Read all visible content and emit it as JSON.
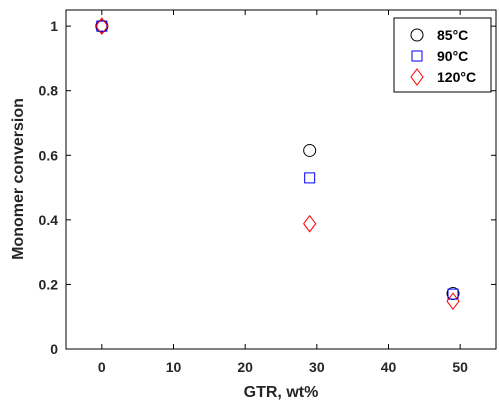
{
  "chart_data": {
    "type": "scatter",
    "title": "",
    "xlabel": "GTR, wt%",
    "ylabel": "Monomer conversion",
    "xlim": [
      -5,
      55
    ],
    "ylim": [
      0,
      1.05
    ],
    "x_ticks": [
      0,
      10,
      20,
      30,
      40,
      50
    ],
    "y_ticks": [
      0,
      0.2,
      0.4,
      0.6,
      0.8,
      1
    ],
    "x_tick_labels": [
      "0",
      "10",
      "20",
      "30",
      "40",
      "50"
    ],
    "y_tick_labels": [
      "0",
      "0.2",
      "0.4",
      "0.6",
      "0.8",
      "1"
    ],
    "grid": false,
    "legend_position": "top-right",
    "series": [
      {
        "name": "85°C",
        "marker": "circle",
        "color": "#000000",
        "points": [
          [
            0,
            1.0
          ],
          [
            29,
            0.615
          ],
          [
            49,
            0.172
          ]
        ]
      },
      {
        "name": "90°C",
        "marker": "square",
        "color": "#0000ff",
        "points": [
          [
            0,
            1.0
          ],
          [
            29,
            0.53
          ],
          [
            49,
            0.17
          ]
        ]
      },
      {
        "name": "120°C",
        "marker": "diamond",
        "color": "#ff0000",
        "points": [
          [
            0,
            1.0
          ],
          [
            29,
            0.388
          ],
          [
            49,
            0.148
          ]
        ]
      }
    ]
  }
}
